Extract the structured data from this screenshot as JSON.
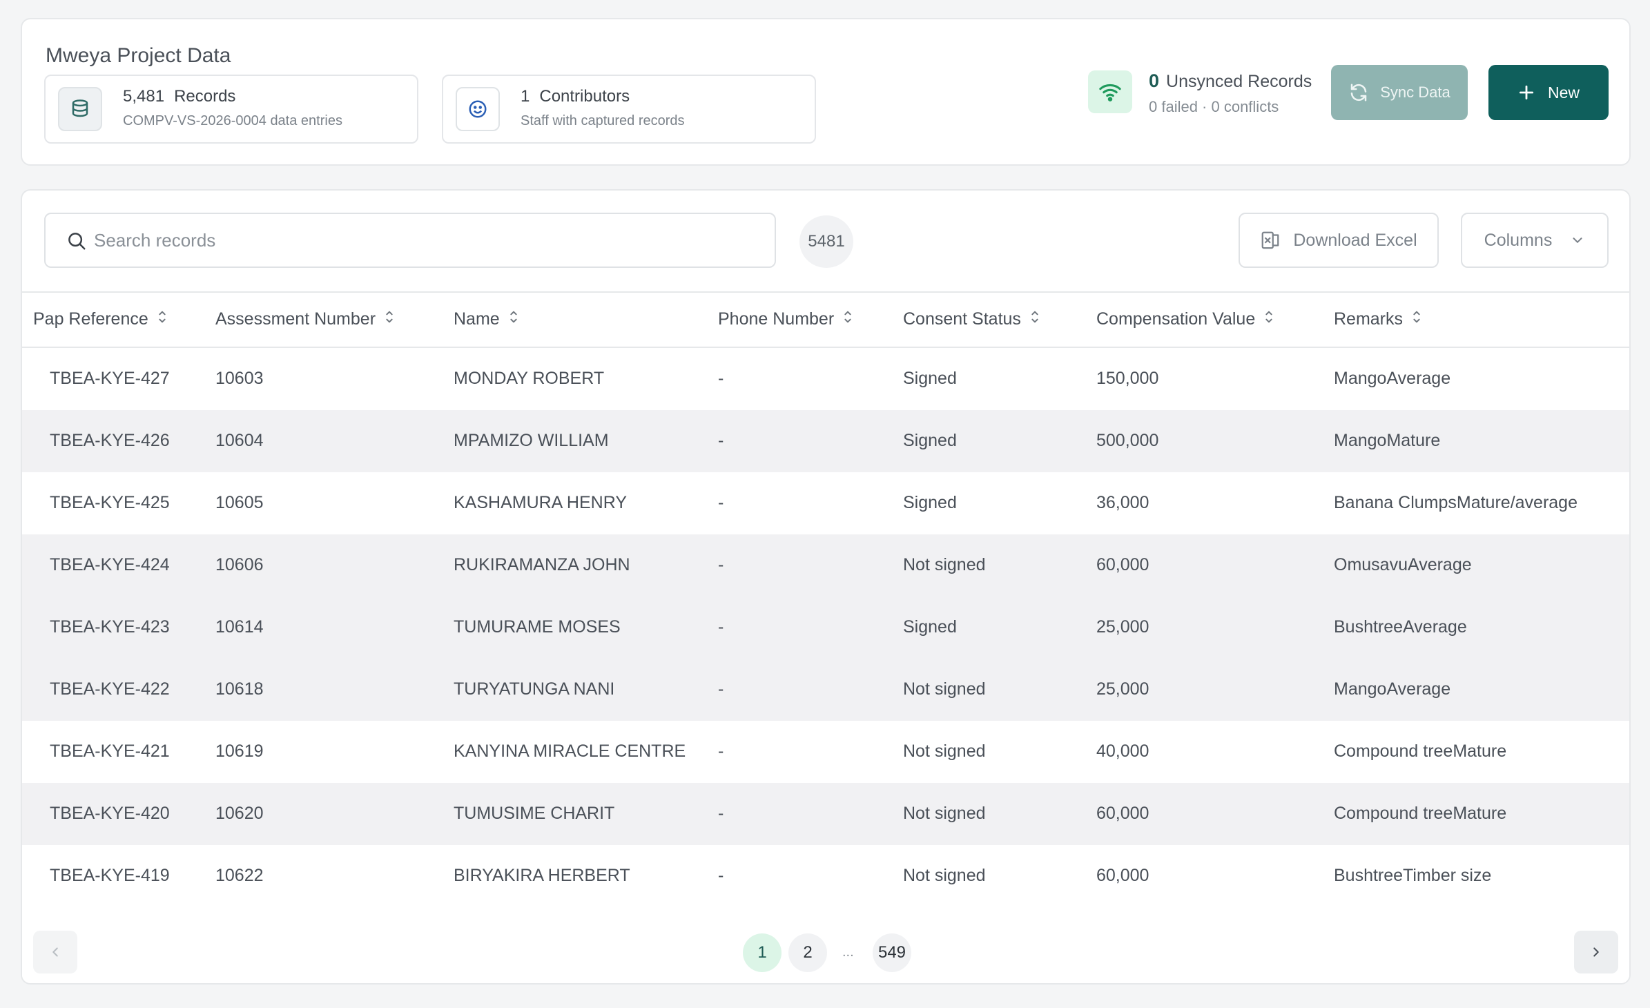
{
  "header": {
    "title": "Mweya Project Data",
    "records": {
      "count": "5,481",
      "label": "Records",
      "sub": "COMPV-VS-2026-0004 data entries"
    },
    "contributors": {
      "count": "1",
      "label": "Contributors",
      "sub": "Staff with captured records"
    },
    "unsynced": {
      "count": "0",
      "label": "Unsynced Records",
      "sub": "0 failed · 0 conflicts"
    },
    "sync_label": "Sync Data",
    "new_label": "New"
  },
  "toolbar": {
    "search_placeholder": "Search records",
    "search_value": "",
    "total_count": "5481",
    "download_label": "Download Excel",
    "columns_label": "Columns"
  },
  "table": {
    "columns": [
      "Pap Reference",
      "Assessment Number",
      "Name",
      "Phone Number",
      "Consent Status",
      "Compensation Value",
      "Remarks"
    ],
    "rows": [
      [
        "TBEA-KYE-427",
        "10603",
        "MONDAY ROBERT",
        "-",
        "Signed",
        "150,000",
        "MangoAverage"
      ],
      [
        "TBEA-KYE-426",
        "10604",
        "MPAMIZO WILLIAM",
        "-",
        "Signed",
        "500,000",
        "MangoMature"
      ],
      [
        "TBEA-KYE-425",
        "10605",
        "KASHAMURA HENRY",
        "-",
        "Signed",
        "36,000",
        "Banana ClumpsMature/average"
      ],
      [
        "TBEA-KYE-424",
        "10606",
        "RUKIRAMANZA JOHN",
        "-",
        "Not signed",
        "60,000",
        "OmusavuAverage"
      ],
      [
        "TBEA-KYE-423",
        "10614",
        "TUMURAME MOSES",
        "-",
        "Signed",
        "25,000",
        "BushtreeAverage"
      ],
      [
        "TBEA-KYE-422",
        "10618",
        "TURYATUNGA NANI",
        "-",
        "Not signed",
        "25,000",
        "MangoAverage"
      ],
      [
        "TBEA-KYE-421",
        "10619",
        "KANYINA MIRACLE CENTRE",
        "-",
        "Not signed",
        "40,000",
        "Compound treeMature"
      ],
      [
        "TBEA-KYE-420",
        "10620",
        "TUMUSIME CHARIT",
        "-",
        "Not signed",
        "60,000",
        "Compound treeMature"
      ],
      [
        "TBEA-KYE-419",
        "10622",
        "BIRYAKIRA HERBERT",
        "-",
        "Not signed",
        "60,000",
        "BushtreeTimber size"
      ]
    ]
  },
  "pagination": {
    "pages": [
      "1",
      "2",
      "549"
    ],
    "current": "1",
    "ellipsis": "..."
  },
  "colors": {
    "brand": "#0f5f5c",
    "sync_disabled": "#8fb4b1",
    "active_page": "#dcf5e7",
    "wifi_bg": "#dcf5e7"
  },
  "icons": {
    "records": "database-icon",
    "contributors": "smile-icon",
    "connection": "wifi-icon",
    "sync": "refresh-icon",
    "new": "plus-icon",
    "search": "search-icon",
    "download": "excel-icon",
    "columns": "chevron-down-icon",
    "sort": "sort-icon",
    "prev": "chevron-left-icon",
    "next": "chevron-right-icon"
  }
}
